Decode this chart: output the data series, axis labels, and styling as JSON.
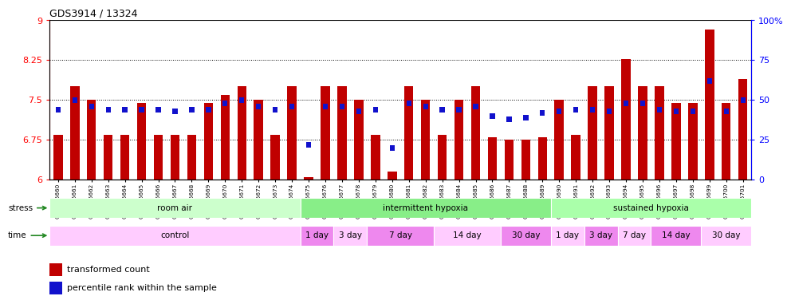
{
  "title": "GDS3914 / 13324",
  "samples": [
    "GSM215660",
    "GSM215661",
    "GSM215662",
    "GSM215663",
    "GSM215664",
    "GSM215665",
    "GSM215666",
    "GSM215667",
    "GSM215668",
    "GSM215669",
    "GSM215670",
    "GSM215671",
    "GSM215672",
    "GSM215673",
    "GSM215674",
    "GSM215675",
    "GSM215676",
    "GSM215677",
    "GSM215678",
    "GSM215679",
    "GSM215680",
    "GSM215681",
    "GSM215682",
    "GSM215683",
    "GSM215684",
    "GSM215685",
    "GSM215686",
    "GSM215687",
    "GSM215688",
    "GSM215689",
    "GSM215690",
    "GSM215691",
    "GSM215692",
    "GSM215693",
    "GSM215694",
    "GSM215695",
    "GSM215696",
    "GSM215697",
    "GSM215698",
    "GSM215699",
    "GSM215700",
    "GSM215701"
  ],
  "red_values": [
    6.84,
    7.76,
    7.5,
    6.85,
    6.84,
    7.45,
    6.84,
    6.84,
    6.84,
    7.45,
    7.6,
    7.76,
    7.5,
    6.84,
    7.76,
    6.05,
    7.76,
    7.76,
    7.5,
    6.84,
    6.15,
    7.76,
    7.5,
    6.84,
    7.5,
    7.76,
    6.8,
    6.75,
    6.75,
    6.8,
    7.5,
    6.84,
    7.76,
    7.76,
    8.27,
    7.76,
    7.76,
    7.45,
    7.45,
    8.82,
    7.45,
    7.9
  ],
  "blue_percentiles": [
    44,
    50,
    46,
    44,
    44,
    44,
    44,
    43,
    44,
    44,
    48,
    50,
    46,
    44,
    46,
    22,
    46,
    46,
    43,
    44,
    20,
    48,
    46,
    44,
    44,
    46,
    40,
    38,
    39,
    42,
    43,
    44,
    44,
    43,
    48,
    48,
    44,
    43,
    43,
    62,
    43,
    50
  ],
  "ylim_left": [
    6.0,
    9.0
  ],
  "ylim_right": [
    0,
    100
  ],
  "yticks_left": [
    6.0,
    6.75,
    7.5,
    8.25,
    9.0
  ],
  "yticks_right": [
    0,
    25,
    50,
    75,
    100
  ],
  "ytick_labels_left": [
    "6",
    "6.75",
    "7.5",
    "8.25",
    "9"
  ],
  "ytick_labels_right": [
    "0",
    "25",
    "50",
    "75",
    "100%"
  ],
  "hlines": [
    6.75,
    7.5,
    8.25
  ],
  "bar_color": "#C00000",
  "blue_color": "#1111CC",
  "stress_groups": [
    {
      "label": "room air",
      "start": 0,
      "end": 15,
      "color": "#CCFFCC"
    },
    {
      "label": "intermittent hypoxia",
      "start": 15,
      "end": 30,
      "color": "#88EE88"
    },
    {
      "label": "sustained hypoxia",
      "start": 30,
      "end": 42,
      "color": "#AAFFAA"
    }
  ],
  "time_groups": [
    {
      "label": "control",
      "start": 0,
      "end": 15,
      "color": "#FFCCFF"
    },
    {
      "label": "1 day",
      "start": 15,
      "end": 17,
      "color": "#EE88EE"
    },
    {
      "label": "3 day",
      "start": 17,
      "end": 19,
      "color": "#FFCCFF"
    },
    {
      "label": "7 day",
      "start": 19,
      "end": 23,
      "color": "#EE88EE"
    },
    {
      "label": "14 day",
      "start": 23,
      "end": 27,
      "color": "#FFCCFF"
    },
    {
      "label": "30 day",
      "start": 27,
      "end": 30,
      "color": "#EE88EE"
    },
    {
      "label": "1 day",
      "start": 30,
      "end": 32,
      "color": "#FFCCFF"
    },
    {
      "label": "3 day",
      "start": 32,
      "end": 34,
      "color": "#EE88EE"
    },
    {
      "label": "7 day",
      "start": 34,
      "end": 36,
      "color": "#FFCCFF"
    },
    {
      "label": "14 day",
      "start": 36,
      "end": 39,
      "color": "#EE88EE"
    },
    {
      "label": "30 day",
      "start": 39,
      "end": 42,
      "color": "#FFCCFF"
    }
  ],
  "legend_red_label": "transformed count",
  "legend_blue_label": "percentile rank within the sample",
  "bar_width": 0.55,
  "base_value": 6.0,
  "n_samples": 42
}
